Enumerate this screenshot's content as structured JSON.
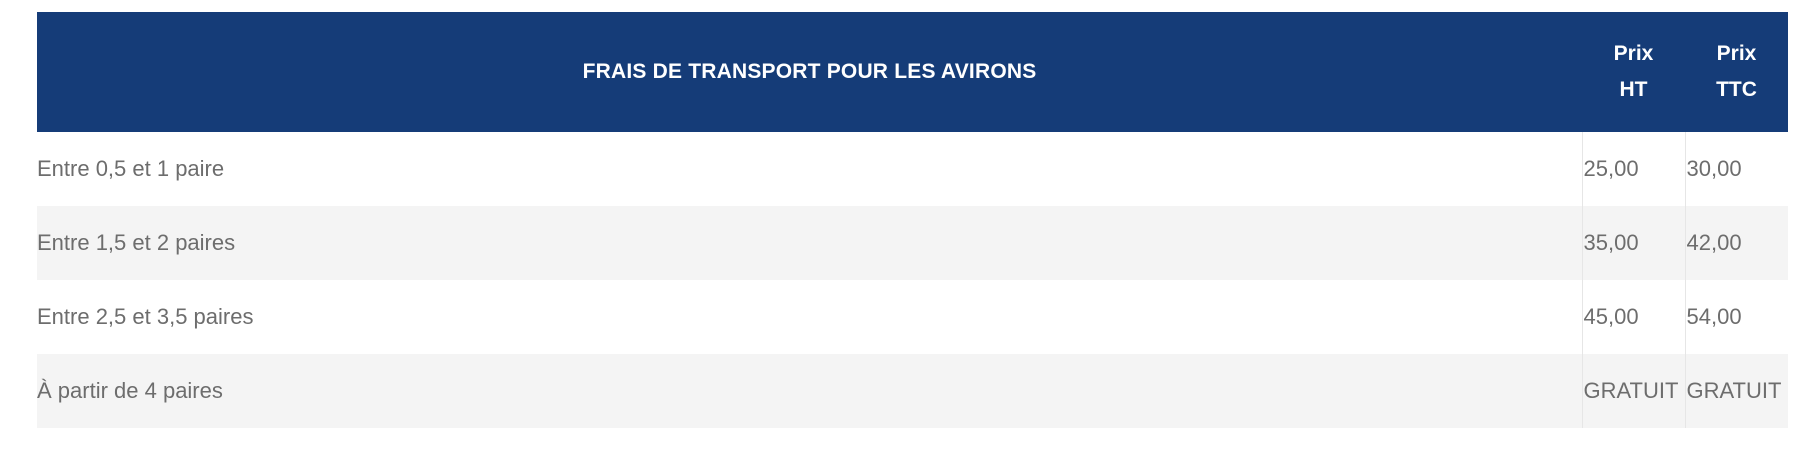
{
  "table": {
    "header": {
      "title": "FRAIS DE TRANSPORT POUR LES AVIRONS",
      "col_ht_line1": "Prix",
      "col_ht_line2": "HT",
      "col_ttc_line1": "Prix",
      "col_ttc_line2": "TTC"
    },
    "rows": [
      {
        "label": "Entre 0,5 et 1 paire",
        "ht": "25,00",
        "ttc": "30,00"
      },
      {
        "label": "Entre 1,5 et 2 paires",
        "ht": "35,00",
        "ttc": "42,00"
      },
      {
        "label": "Entre 2,5 et 3,5 paires",
        "ht": "45,00",
        "ttc": "54,00"
      },
      {
        "label": "À partir de 4 paires",
        "ht": "GRATUIT",
        "ttc": "GRATUIT"
      }
    ]
  },
  "colors": {
    "header_bg": "#153c78",
    "header_text": "#ffffff",
    "body_text": "#6d6d6d",
    "row_alt_bg": "#f4f4f4"
  }
}
